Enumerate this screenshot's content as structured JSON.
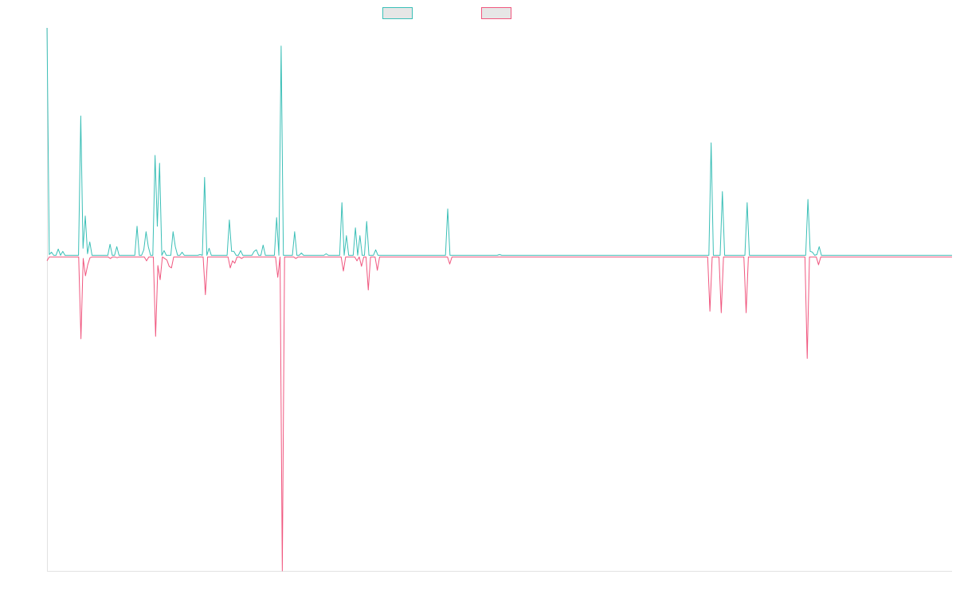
{
  "chart_data": {
    "type": "line",
    "title": "",
    "xlabel": "",
    "ylabel": "",
    "legend_position": "top",
    "grid": false,
    "ylim": [
      -40,
      29
    ],
    "series": [
      {
        "name": "",
        "color": "#3bbfb7",
        "fill": "#e6e6e6",
        "values": [
          29,
          0.2,
          0.5,
          0.1,
          0.1,
          0.9,
          0.1,
          0.6,
          0.1,
          0.1,
          0.1,
          0.1,
          0.1,
          0.1,
          0.1,
          17.8,
          1,
          5.1,
          0.3,
          1.8,
          0.1,
          0.1,
          0.1,
          0.1,
          0.1,
          0.1,
          0.1,
          0.1,
          1.5,
          0.1,
          0.1,
          1.2,
          0.1,
          0.1,
          0.1,
          0.1,
          0.1,
          0.1,
          0.1,
          0.1,
          3.8,
          0.1,
          0.1,
          0.8,
          3.1,
          1.2,
          0.1,
          0.1,
          12.8,
          3.8,
          11.8,
          0.1,
          0.7,
          0.1,
          0.1,
          0.1,
          3.1,
          1.2,
          0.1,
          0.1,
          0.5,
          0.1,
          0.1,
          0.1,
          0.1,
          0.1,
          0.1,
          0.1,
          0.2,
          0.1,
          10,
          0.1,
          1,
          0.1,
          0.1,
          0.1,
          0.1,
          0.1,
          0.1,
          0.1,
          0.1,
          4.6,
          0.6,
          0.6,
          0.1,
          0.1,
          0.7,
          0.1,
          0.1,
          0.1,
          0.1,
          0.1,
          0.6,
          0.8,
          0.1,
          0.1,
          1.4,
          0.1,
          0.1,
          0.1,
          0.1,
          0.1,
          4.9,
          0.1,
          26.7,
          0.1,
          0.1,
          0.1,
          0.1,
          0.1,
          3.1,
          0.1,
          0.1,
          0.4,
          0.1,
          0.1,
          0.1,
          0.1,
          0.1,
          0.1,
          0.1,
          0.1,
          0.1,
          0.1,
          0.3,
          0.1,
          0.1,
          0.1,
          0.1,
          0.1,
          0.1,
          6.8,
          0.1,
          2.6,
          0.1,
          0.1,
          0.1,
          3.6,
          0.1,
          2.6,
          0.1,
          0.1,
          4.4,
          0.1,
          0.1,
          0.1,
          0.8,
          0.1,
          0.1,
          0.1,
          0.1,
          0.1,
          0.1,
          0.1,
          0.1,
          0.1,
          0.1,
          0.1,
          0.1,
          0.1,
          0.1,
          0.1,
          0.1,
          0.1,
          0.1,
          0.1,
          0.1,
          0.1,
          0.1,
          0.1,
          0.1,
          0.1,
          0.1,
          0.1,
          0.1,
          0.1,
          0.1,
          0.1,
          6,
          0.1,
          0.1,
          0.1,
          0.1,
          0.1,
          0.1,
          0.1,
          0.1,
          0.1,
          0.1,
          0.1,
          0.1,
          0.1,
          0.1,
          0.1,
          0.1,
          0.1,
          0.1,
          0.1,
          0.1,
          0.1,
          0.1,
          0.2,
          0.1,
          0.1,
          0.1,
          0.1,
          0.1,
          0.1,
          0.1,
          0.1,
          0.1,
          0.1,
          0.1,
          0.1,
          0.1,
          0.1,
          0.1,
          0.1,
          0.1,
          0.1,
          0.1,
          0.1,
          0.1,
          0.1,
          0.1,
          0.1,
          0.1,
          0.1,
          0.1,
          0.1,
          0.1,
          0.1,
          0.1,
          0.1,
          0.1,
          0.1,
          0.1,
          0.1,
          0.1,
          0.1,
          0.1,
          0.1,
          0.1,
          0.1,
          0.1,
          0.1,
          0.1,
          0.1,
          0.1,
          0.1,
          0.1,
          0.1,
          0.1,
          0.1,
          0.1,
          0.1,
          0.1,
          0.1,
          0.1,
          0.1,
          0.1,
          0.1,
          0.1,
          0.1,
          0.1,
          0.1,
          0.1,
          0.1,
          0.1,
          0.1,
          0.1,
          0.1,
          0.1,
          0.1,
          0.1,
          0.1,
          0.1,
          0.1,
          0.1,
          0.1,
          0.1,
          0.1,
          0.1,
          0.1,
          0.1,
          0.1,
          0.1,
          0.1,
          0.1,
          0.1,
          0.1,
          0.1,
          0.1,
          0.1,
          0.1,
          14.4,
          0.1,
          0.1,
          0.1,
          0.1,
          8.2,
          0.1,
          0.1,
          0.1,
          0.1,
          0.1,
          0.1,
          0.1,
          0.1,
          0.1,
          0.1,
          6.8,
          0.1,
          0.1,
          0.1,
          0.1,
          0.1,
          0.1,
          0.1,
          0.1,
          0.1,
          0.1,
          0.1,
          0.1,
          0.1,
          0.1,
          0.1,
          0.1,
          0.1,
          0.1,
          0.1,
          0.1,
          0.1,
          0.1,
          0.1,
          0.1,
          0.1,
          0.1,
          7.2,
          0.6,
          0.5,
          0.1,
          0.2,
          1.2,
          0.1,
          0.1,
          0.1,
          0.1,
          0.1,
          0.1,
          0.1,
          0.1,
          0.1,
          0.1,
          0.1,
          0.1,
          0.1,
          0.1,
          0.1,
          0.1,
          0.1,
          0.1,
          0.1,
          0.1,
          0.1,
          0.1,
          0.1,
          0.1,
          0.1,
          0.1,
          0.1,
          0.1,
          0.1,
          0.1,
          0.1,
          0.1,
          0.1,
          0.1,
          0.1,
          0.1,
          0.1,
          0.1,
          0.1,
          0.1,
          0.1,
          0.1,
          0.1,
          0.1,
          0.1,
          0.1,
          0.1,
          0.1,
          0.1,
          0.1,
          0.1,
          0.1,
          0.1,
          0.1,
          0.1,
          0.1,
          0.1,
          0.1,
          0.1
        ]
      },
      {
        "name": "",
        "color": "#f0577f",
        "fill": "#e6e6e6",
        "values": [
          -0.6,
          -0.1,
          -0.1,
          -0.1,
          -0.1,
          -0.1,
          -0.1,
          -0.1,
          -0.1,
          -0.1,
          -0.1,
          -0.1,
          -0.1,
          -0.1,
          -0.1,
          -10.5,
          -0.3,
          -2.5,
          -1.1,
          -0.2,
          -0.1,
          -0.1,
          -0.1,
          -0.1,
          -0.1,
          -0.1,
          -0.1,
          -0.1,
          -0.3,
          -0.1,
          -0.1,
          -0.2,
          -0.1,
          -0.1,
          -0.1,
          -0.1,
          -0.1,
          -0.1,
          -0.1,
          -0.1,
          -0.1,
          -0.1,
          -0.1,
          -0.1,
          -0.6,
          -0.1,
          -0.1,
          -0.1,
          -10.2,
          -1.2,
          -3,
          -0.1,
          -0.3,
          -0.5,
          -1.3,
          -1.5,
          -0.1,
          -0.1,
          -0.1,
          -0.1,
          -0.1,
          -0.1,
          -0.1,
          -0.1,
          -0.1,
          -0.1,
          -0.1,
          -0.1,
          -0.1,
          -0.1,
          -4.9,
          -0.1,
          -0.1,
          -0.1,
          -0.1,
          -0.1,
          -0.1,
          -0.1,
          -0.1,
          -0.1,
          -0.1,
          -1.5,
          -0.6,
          -0.9,
          -0.1,
          -0.1,
          -0.3,
          -0.1,
          -0.1,
          -0.1,
          -0.1,
          -0.1,
          -0.1,
          -0.1,
          -0.1,
          -0.1,
          -0.1,
          -0.1,
          -0.1,
          -0.1,
          -0.1,
          -0.1,
          -2.7,
          -0.1,
          -40,
          -0.1,
          -0.1,
          -0.1,
          -0.1,
          -0.1,
          -0.3,
          -0.1,
          -0.1,
          -0.1,
          -0.1,
          -0.1,
          -0.1,
          -0.1,
          -0.1,
          -0.1,
          -0.1,
          -0.1,
          -0.1,
          -0.1,
          -0.1,
          -0.1,
          -0.1,
          -0.1,
          -0.1,
          -0.1,
          -0.1,
          -1.9,
          -0.1,
          -0.1,
          -0.1,
          -0.1,
          -0.1,
          -0.6,
          -0.1,
          -1.3,
          -0.1,
          -0.1,
          -4.3,
          -0.1,
          -0.1,
          -0.1,
          -1.8,
          -0.1,
          -0.1,
          -0.1,
          -0.1,
          -0.1,
          -0.1,
          -0.1,
          -0.1,
          -0.1,
          -0.1,
          -0.1,
          -0.1,
          -0.1,
          -0.1,
          -0.1,
          -0.1,
          -0.1,
          -0.1,
          -0.1,
          -0.1,
          -0.1,
          -0.1,
          -0.1,
          -0.1,
          -0.1,
          -0.1,
          -0.1,
          -0.1,
          -0.1,
          -0.1,
          -0.1,
          -1,
          -0.1,
          -0.1,
          -0.1,
          -0.1,
          -0.1,
          -0.1,
          -0.1,
          -0.1,
          -0.1,
          -0.1,
          -0.1,
          -0.1,
          -0.1,
          -0.1,
          -0.1,
          -0.1,
          -0.1,
          -0.1,
          -0.1,
          -0.1,
          -0.1,
          -0.1,
          -0.1,
          -0.1,
          -0.1,
          -0.1,
          -0.1,
          -0.1,
          -0.1,
          -0.1,
          -0.1,
          -0.1,
          -0.1,
          -0.1,
          -0.1,
          -0.1,
          -0.1,
          -0.1,
          -0.1,
          -0.1,
          -0.1,
          -0.1,
          -0.1,
          -0.1,
          -0.1,
          -0.1,
          -0.1,
          -0.1,
          -0.1,
          -0.1,
          -0.1,
          -0.1,
          -0.1,
          -0.1,
          -0.1,
          -0.1,
          -0.1,
          -0.1,
          -0.1,
          -0.1,
          -0.1,
          -0.1,
          -0.1,
          -0.1,
          -0.1,
          -0.1,
          -0.1,
          -0.1,
          -0.1,
          -0.1,
          -0.1,
          -0.1,
          -0.1,
          -0.1,
          -0.1,
          -0.1,
          -0.1,
          -0.1,
          -0.1,
          -0.1,
          -0.1,
          -0.1,
          -0.1,
          -0.1,
          -0.1,
          -0.1,
          -0.1,
          -0.1,
          -0.1,
          -0.1,
          -0.1,
          -0.1,
          -0.1,
          -0.1,
          -0.1,
          -0.1,
          -0.1,
          -0.1,
          -0.1,
          -0.1,
          -0.1,
          -0.1,
          -0.1,
          -0.1,
          -0.1,
          -0.1,
          -0.1,
          -0.1,
          -0.1,
          -0.1,
          -0.1,
          -0.1,
          -0.1,
          -0.1,
          -7,
          -0.1,
          -0.1,
          -0.1,
          -0.1,
          -7.2,
          -0.1,
          -0.1,
          -0.1,
          -0.1,
          -0.1,
          -0.1,
          -0.1,
          -0.1,
          -0.1,
          -0.1,
          -7.2,
          -0.1,
          -0.1,
          -0.1,
          -0.1,
          -0.1,
          -0.1,
          -0.1,
          -0.1,
          -0.1,
          -0.1,
          -0.1,
          -0.1,
          -0.1,
          -0.1,
          -0.1,
          -0.1,
          -0.1,
          -0.1,
          -0.1,
          -0.1,
          -0.1,
          -0.1,
          -0.1,
          -0.1,
          -0.1,
          -0.1,
          -13,
          -0.1,
          -0.1,
          -0.1,
          -0.1,
          -1.1,
          -0.1,
          -0.1,
          -0.1,
          -0.1,
          -0.1,
          -0.1,
          -0.1,
          -0.1,
          -0.1,
          -0.1,
          -0.1,
          -0.1,
          -0.1,
          -0.1,
          -0.1,
          -0.1,
          -0.1,
          -0.1,
          -0.1,
          -0.1,
          -0.1,
          -0.1,
          -0.1,
          -0.1,
          -0.1,
          -0.1,
          -0.1,
          -0.1,
          -0.1,
          -0.1,
          -0.1,
          -0.1,
          -0.1,
          -0.1,
          -0.1,
          -0.1,
          -0.1,
          -0.1,
          -0.1,
          -0.1,
          -0.1,
          -0.1,
          -0.1,
          -0.1,
          -0.1,
          -0.1,
          -0.1,
          -0.1,
          -0.1,
          -0.1,
          -0.1,
          -0.1,
          -0.1,
          -0.1,
          -0.1,
          -0.1,
          -0.1,
          -0.1,
          -0.1
        ]
      }
    ]
  }
}
